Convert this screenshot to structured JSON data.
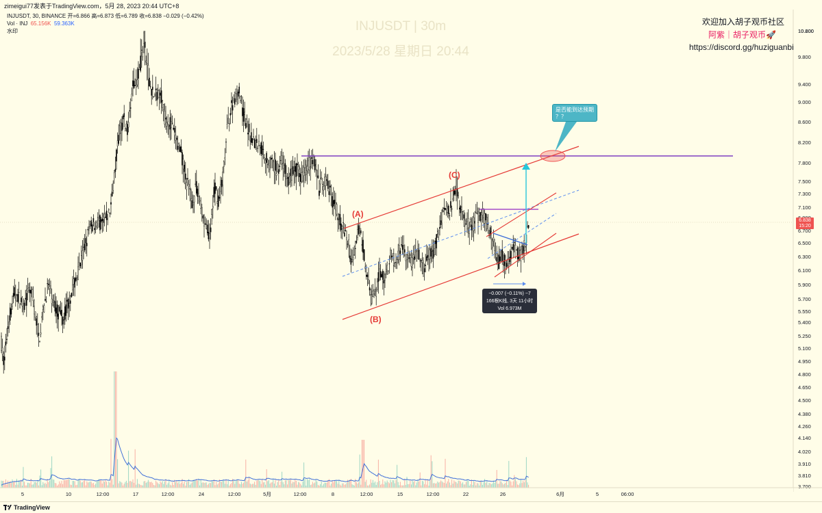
{
  "header": {
    "text": "zimeigui77发表于TradingView.com，5月 28, 2023 20:44 UTC+8"
  },
  "legend": {
    "symbol_line": "INJUSDT, 30, BINANCE  开=6.866  高=6.873  低=6.789  收=6.838  −0.029 (−0.42%)",
    "vol_label": "Vol · INJ",
    "vol_value1": "65.156K",
    "vol_value2": "59.363K",
    "watermark_label": "水印"
  },
  "watermark": {
    "symbol": "INJUSDT | 30m",
    "datetime": "2023/5/28 星期日 20:44"
  },
  "notes": {
    "line1": "欢迎加入胡子观币社区",
    "line2": "阿紫｜胡子观币🚀",
    "line3": "https://discord.gg/huziguanbi"
  },
  "callout": {
    "text": "是否能到达预期\n？？"
  },
  "wave_labels": {
    "a": "(A)",
    "b": "(B)",
    "c": "(C)"
  },
  "measure": {
    "line1": "−0.007 (−0.11%) −7",
    "line2": "166根K线, 3天 11小时",
    "line3": "Vol 6.973M"
  },
  "price_tag": {
    "price": "6.838",
    "countdown": "15:20"
  },
  "footer": {
    "brand": "TradingView"
  },
  "colors": {
    "background": "#fffde8",
    "candle": "#000000",
    "channel": "#e53935",
    "purple_line": "#7e3fbf",
    "dashed": "#5b8def",
    "target_arrow": "#26c6da",
    "callout": "#4db6c6"
  },
  "chart_data": {
    "type": "candlestick",
    "symbol": "INJUSDT",
    "interval": "30",
    "exchange": "BINANCE",
    "ohlc_last": {
      "open": 6.866,
      "high": 6.873,
      "low": 6.789,
      "close": 6.838,
      "change": -0.029,
      "change_pct": -0.42
    },
    "last_price": 6.838,
    "y_axis": {
      "unit": "USDT",
      "ticks": [
        10.6,
        10.2,
        9.8,
        9.4,
        9.0,
        8.6,
        8.2,
        7.8,
        7.5,
        7.3,
        7.1,
        6.9,
        6.7,
        6.5,
        6.3,
        6.1,
        5.9,
        5.7,
        5.55,
        5.4,
        5.25,
        5.1,
        4.95,
        4.8,
        4.65,
        4.5,
        4.38,
        4.26,
        4.14,
        4.02,
        3.91,
        3.81,
        3.7
      ]
    },
    "x_axis": {
      "ticks": [
        "5",
        "10",
        "12:00",
        "17",
        "12:00",
        "24",
        "12:00",
        "5月",
        "12:00",
        "8",
        "12:00",
        "15",
        "12:00",
        "22",
        "26",
        "6月",
        "5",
        "06:00"
      ]
    },
    "price_path": [
      [
        0,
        5.3
      ],
      [
        6,
        4.9
      ],
      [
        12,
        5.4
      ],
      [
        22,
        5.8
      ],
      [
        35,
        5.6
      ],
      [
        45,
        5.85
      ],
      [
        57,
        5.2
      ],
      [
        70,
        5.9
      ],
      [
        80,
        5.6
      ],
      [
        92,
        5.45
      ],
      [
        105,
        5.8
      ],
      [
        118,
        6.2
      ],
      [
        130,
        6.7
      ],
      [
        140,
        6.85
      ],
      [
        150,
        6.8
      ],
      [
        160,
        7.0
      ],
      [
        165,
        7.4
      ],
      [
        172,
        8.2
      ],
      [
        180,
        8.7
      ],
      [
        187,
        8.4
      ],
      [
        194,
        9.3
      ],
      [
        202,
        9.6
      ],
      [
        210,
        10.0
      ],
      [
        218,
        9.4
      ],
      [
        226,
        9.1
      ],
      [
        234,
        9.3
      ],
      [
        240,
        8.7
      ],
      [
        248,
        8.6
      ],
      [
        256,
        8.3
      ],
      [
        264,
        8.0
      ],
      [
        272,
        7.5
      ],
      [
        280,
        7.2
      ],
      [
        288,
        7.4
      ],
      [
        297,
        6.9
      ],
      [
        306,
        6.55
      ],
      [
        313,
        7.4
      ],
      [
        320,
        7.2
      ],
      [
        326,
        7.6
      ],
      [
        333,
        8.6
      ],
      [
        340,
        9.0
      ],
      [
        348,
        9.3
      ],
      [
        356,
        8.7
      ],
      [
        364,
        8.4
      ],
      [
        372,
        8.2
      ],
      [
        380,
        8.15
      ],
      [
        388,
        7.9
      ],
      [
        396,
        7.8
      ],
      [
        404,
        7.7
      ],
      [
        412,
        7.85
      ],
      [
        420,
        7.5
      ],
      [
        430,
        7.7
      ],
      [
        440,
        7.6
      ],
      [
        450,
        7.8
      ],
      [
        458,
        7.9
      ],
      [
        466,
        7.4
      ],
      [
        475,
        7.5
      ],
      [
        482,
        7.3
      ],
      [
        490,
        7.1
      ],
      [
        498,
        6.8
      ],
      [
        506,
        6.6
      ],
      [
        514,
        6.2
      ],
      [
        522,
        6.7
      ],
      [
        528,
        6.6
      ],
      [
        536,
        6.0
      ],
      [
        542,
        5.7
      ],
      [
        548,
        5.75
      ],
      [
        555,
        6.1
      ],
      [
        562,
        6.0
      ],
      [
        570,
        6.3
      ],
      [
        578,
        6.2
      ],
      [
        586,
        6.45
      ],
      [
        594,
        6.3
      ],
      [
        602,
        6.2
      ],
      [
        610,
        6.35
      ],
      [
        618,
        6.1
      ],
      [
        626,
        6.3
      ],
      [
        634,
        6.4
      ],
      [
        641,
        6.7
      ],
      [
        648,
        7.1
      ],
      [
        655,
        7.0
      ],
      [
        661,
        7.2
      ],
      [
        666,
        7.5
      ],
      [
        672,
        7.1
      ],
      [
        680,
        6.8
      ],
      [
        688,
        6.75
      ],
      [
        696,
        6.9
      ],
      [
        704,
        7.0
      ],
      [
        712,
        6.8
      ],
      [
        720,
        6.5
      ],
      [
        727,
        6.2
      ],
      [
        733,
        6.3
      ],
      [
        740,
        6.2
      ],
      [
        747,
        6.4
      ],
      [
        754,
        6.4
      ],
      [
        760,
        6.3
      ],
      [
        766,
        6.45
      ],
      [
        772,
        6.84
      ]
    ],
    "volume": {
      "series": [
        "Vol · INJ",
        "MA"
      ],
      "values": [
        "65.156K",
        "59.363K"
      ]
    },
    "drawings": {
      "horizontal_line_price": 7.92,
      "target_ellipse_price": 7.92,
      "short_horizontal_price": 7.05,
      "channel": "rising parallel channel with dashed median",
      "wave_points": {
        "A": 6.85,
        "B": 5.62,
        "C": 7.48
      }
    }
  }
}
